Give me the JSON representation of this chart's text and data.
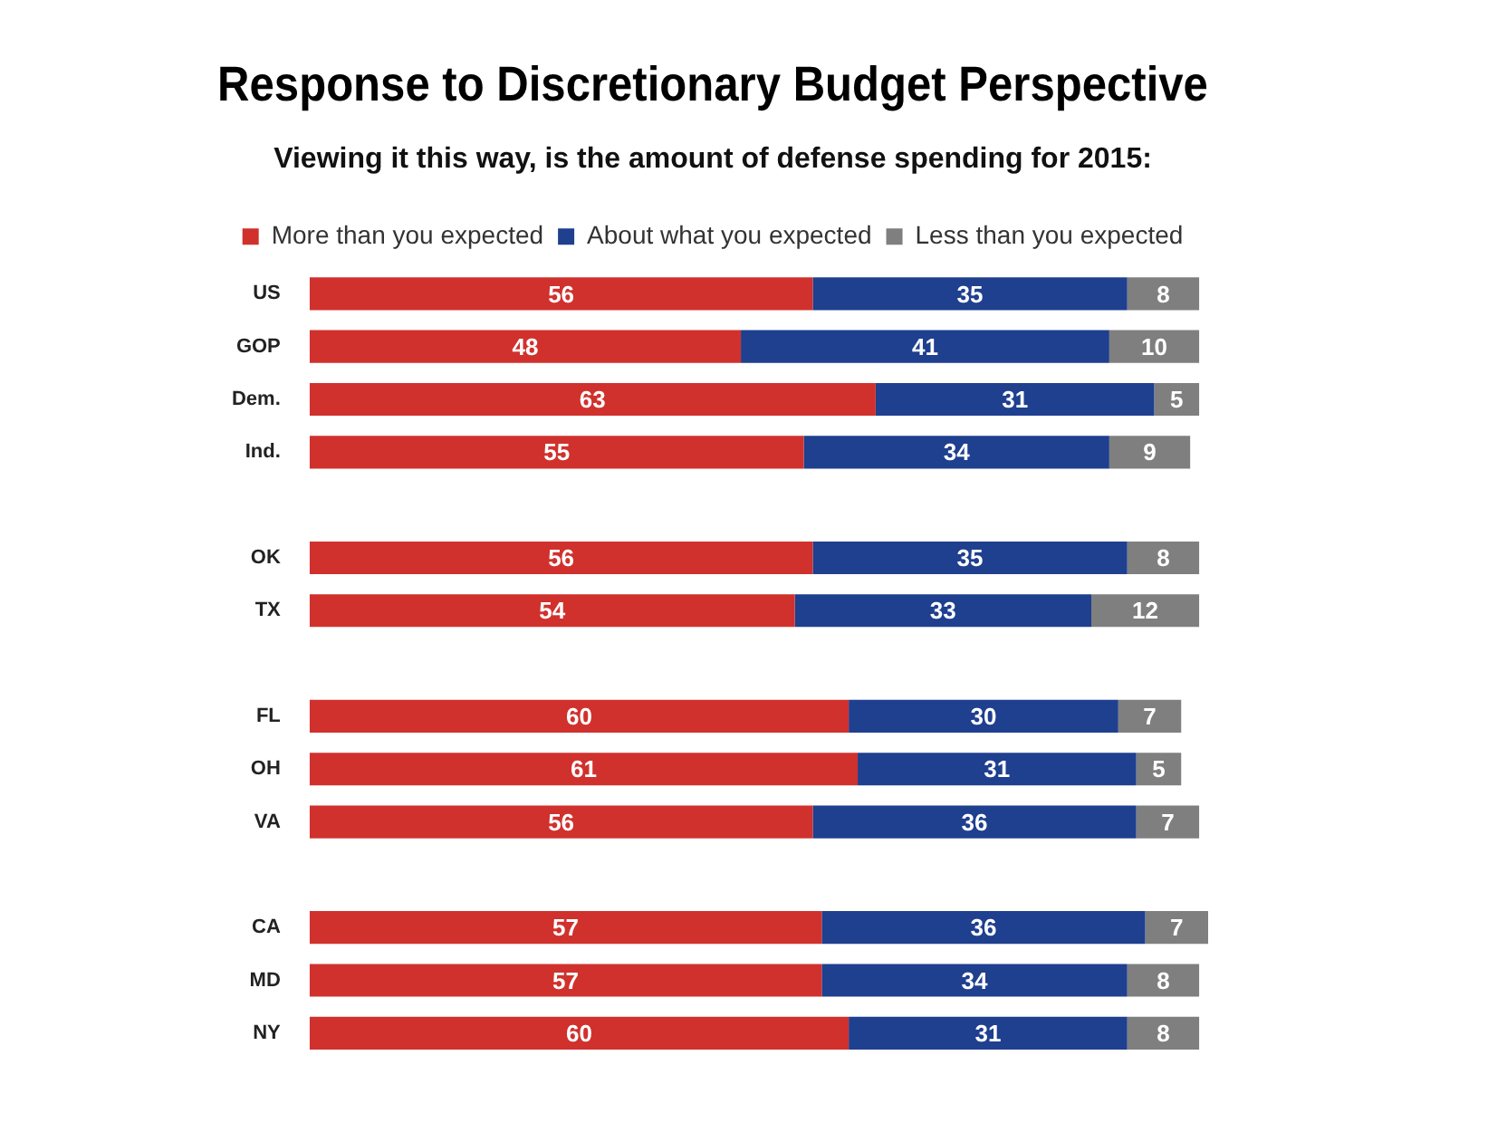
{
  "chart_data": {
    "type": "bar",
    "orientation": "horizontal",
    "stacked": true,
    "title": "Response to Discretionary Budget Perspective",
    "subtitle": "Viewing it this way, is the amount of defense spending for 2015:",
    "categories": [
      "US",
      "GOP",
      "Dem.",
      "Ind.",
      null,
      "OK",
      "TX",
      null,
      "FL",
      "OH",
      "VA",
      null,
      "CA",
      "MD",
      "NY"
    ],
    "series": [
      {
        "name": "More than you expected",
        "color": "#d0312d",
        "values": [
          56,
          48,
          63,
          55,
          null,
          56,
          54,
          null,
          60,
          61,
          56,
          null,
          57,
          57,
          60
        ]
      },
      {
        "name": "About what you expected",
        "color": "#1f3f8f",
        "values": [
          35,
          41,
          31,
          34,
          null,
          35,
          33,
          null,
          30,
          31,
          36,
          null,
          36,
          34,
          31
        ]
      },
      {
        "name": "Less than you expected",
        "color": "#7f7f7f",
        "values": [
          8,
          10,
          5,
          9,
          null,
          8,
          12,
          null,
          7,
          5,
          7,
          null,
          7,
          8,
          8
        ]
      }
    ],
    "xlim": [
      0,
      100
    ],
    "data_labels": true,
    "legend": "top"
  }
}
